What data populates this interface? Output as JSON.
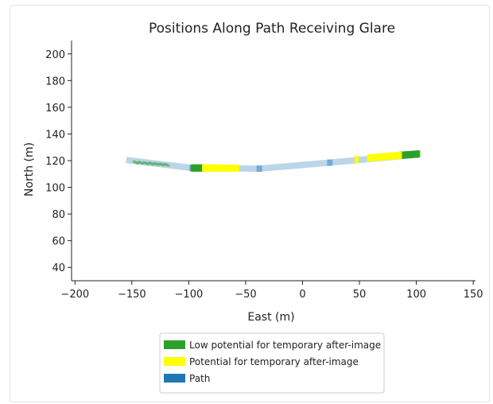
{
  "chart_data": {
    "type": "scatter",
    "title": "Positions Along Path Receiving Glare",
    "xlabel": "East (m)",
    "ylabel": "North (m)",
    "xlim": [
      -203,
      152
    ],
    "ylim": [
      30,
      210
    ],
    "xticks": [
      -200,
      -150,
      -100,
      -50,
      0,
      50,
      100,
      150
    ],
    "xtick_labels": [
      "−200",
      "−150",
      "−100",
      "−50",
      "0",
      "50",
      "100",
      "150"
    ],
    "yticks": [
      40,
      60,
      80,
      100,
      120,
      140,
      160,
      180,
      200
    ],
    "ytick_labels": [
      "40",
      "60",
      "80",
      "100",
      "120",
      "140",
      "160",
      "180",
      "200"
    ],
    "grid": false,
    "legend_position": "bottom-center",
    "colors": {
      "low": "#2ca02c",
      "potential": "#ffff00",
      "path": "#1f77b4"
    },
    "path": {
      "name": "Path",
      "x": [
        -155,
        -97,
        -38,
        24,
        100
      ],
      "y": [
        120.5,
        114.5,
        114,
        118.5,
        124.5
      ]
    },
    "series": [
      {
        "name": "Low potential for temporary after-image",
        "segments": [
          {
            "x": [
              -148,
              -118
            ],
            "y": [
              118.5,
              116.5
            ],
            "density": "sparse"
          },
          {
            "x": [
              -97,
              -87
            ],
            "y": [
              114.5,
              114.5
            ],
            "density": "dense"
          },
          {
            "x": [
              86,
              102
            ],
            "y": [
              124,
              125
            ],
            "density": "dense"
          }
        ]
      },
      {
        "name": "Potential for temporary after-image",
        "segments": [
          {
            "x": [
              -87,
              -57
            ],
            "y": [
              114.5,
              114.3
            ],
            "density": "dense"
          },
          {
            "x": [
              58,
              86
            ],
            "y": [
              122,
              124
            ],
            "density": "dense"
          },
          {
            "x": [
              47,
              48
            ],
            "y": [
              121,
              121
            ],
            "density": "dense"
          }
        ]
      }
    ]
  }
}
